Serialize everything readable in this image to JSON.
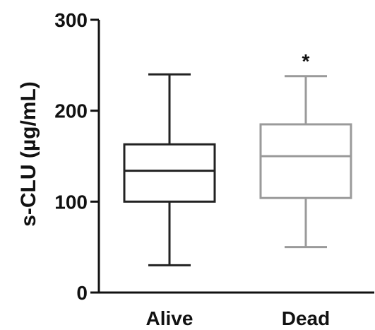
{
  "chart_data": {
    "type": "box",
    "title": "",
    "xlabel": "",
    "ylabel": "s-CLU (µg/mL)",
    "ylim": [
      0,
      300
    ],
    "yticks": [
      0,
      100,
      200,
      300
    ],
    "grid": false,
    "categories": [
      "Alive",
      "Dead"
    ],
    "boxes": [
      {
        "category": "Alive",
        "min": 30,
        "q1": 100,
        "median": 134,
        "q3": 163,
        "max": 240,
        "color": "#222222",
        "annotation": ""
      },
      {
        "category": "Dead",
        "min": 50,
        "q1": 104,
        "median": 150,
        "q3": 185,
        "max": 238,
        "color": "#9a9a9a",
        "annotation": "*"
      }
    ]
  }
}
